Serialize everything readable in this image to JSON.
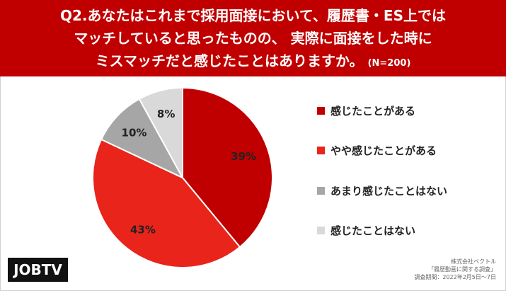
{
  "header": {
    "line1": "Q2.あなたはこれまで採用面接において、履歴書・ES上では",
    "line2": "マッチしていると思ったものの、 実際に面接をした時に",
    "line3": "ミスマッチだと感じたことはありますか。",
    "sample": "(N=200)",
    "background": "#c00000"
  },
  "chart_data": {
    "type": "pie",
    "start_angle_deg": 0,
    "direction": "clockwise",
    "slices": [
      {
        "name": "感じたことがある",
        "value": 39,
        "label": "39%",
        "color": "#c00000"
      },
      {
        "name": "やや感じたことがある",
        "value": 43,
        "label": "43%",
        "color": "#e8241b"
      },
      {
        "name": "あまり感じたことはない",
        "value": 10,
        "label": "10%",
        "color": "#a6a6a6"
      },
      {
        "name": "感じたことはない",
        "value": 8,
        "label": "8%",
        "color": "#d9d9d9"
      }
    ],
    "legend_position": "right"
  },
  "logo": {
    "text": "JOBTV"
  },
  "credit": {
    "line1": "株式会社ベクトル",
    "line2": "「履歴動画に関する調査」",
    "line3": "調査期間：2022年2月5日〜7日"
  }
}
